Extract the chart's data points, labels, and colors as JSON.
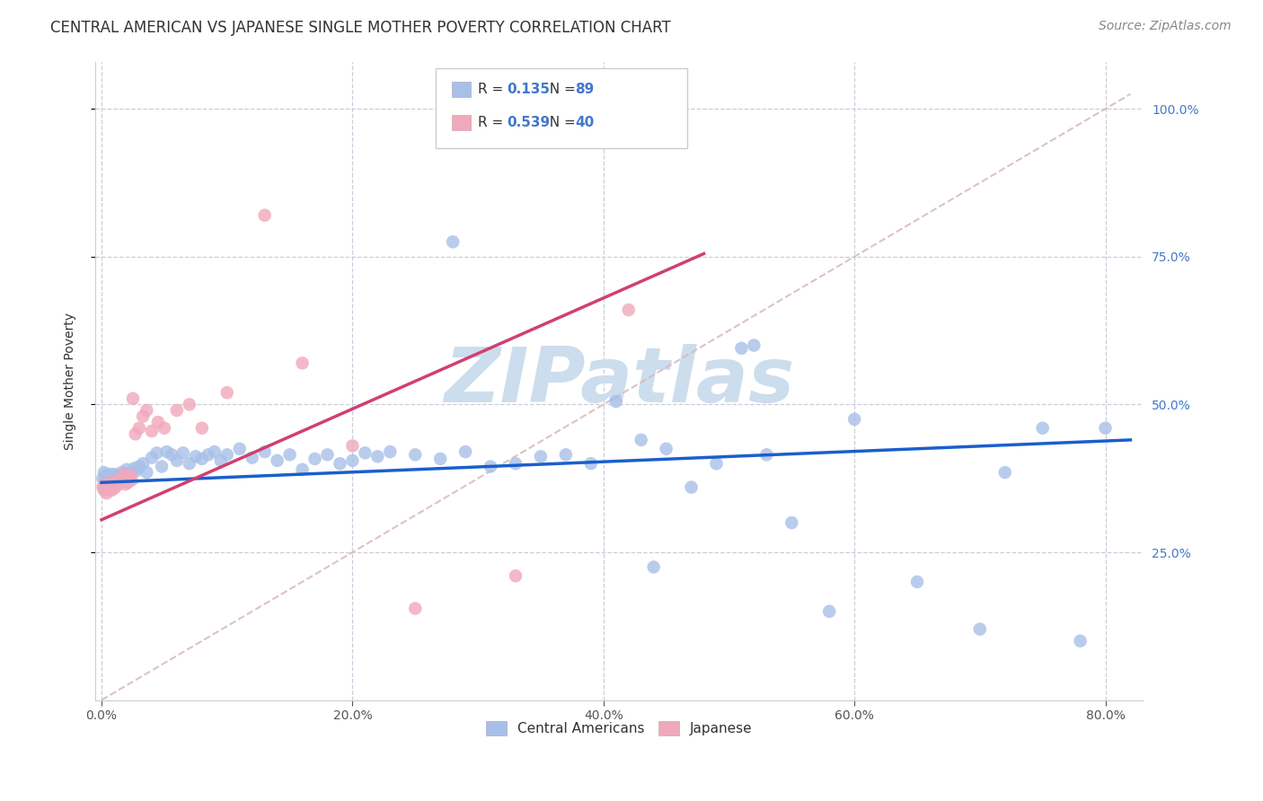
{
  "title": "CENTRAL AMERICAN VS JAPANESE SINGLE MOTHER POVERTY CORRELATION CHART",
  "source": "Source: ZipAtlas.com",
  "ylabel": "Single Mother Poverty",
  "xlabel_ticks": [
    "0.0%",
    "20.0%",
    "40.0%",
    "60.0%",
    "80.0%"
  ],
  "xlabel_vals": [
    0.0,
    0.2,
    0.4,
    0.6,
    0.8
  ],
  "ylabel_ticks": [
    "100.0%",
    "75.0%",
    "50.0%",
    "25.0%"
  ],
  "ylabel_vals": [
    1.0,
    0.75,
    0.5,
    0.25
  ],
  "xlim": [
    -0.005,
    0.83
  ],
  "ylim": [
    0.0,
    1.08
  ],
  "legend_labels": [
    "Central Americans",
    "Japanese"
  ],
  "R_blue": 0.135,
  "N_blue": 89,
  "R_pink": 0.539,
  "N_pink": 40,
  "dot_color_blue": "#a8c0e8",
  "dot_color_pink": "#f0a8bc",
  "trend_color_blue": "#1a5fcc",
  "trend_color_pink": "#d04070",
  "diagonal_color": "#d8b8b8",
  "background_color": "#ffffff",
  "grid_color": "#ccccdd",
  "watermark_color": "#ccdded",
  "title_color": "#333333",
  "source_color": "#888888",
  "tick_color_right": "#4477cc",
  "tick_color_x": "#555555",
  "title_fontsize": 12,
  "axis_label_fontsize": 10,
  "tick_fontsize": 10,
  "legend_fontsize": 11,
  "source_fontsize": 10,
  "blue_x": [
    0.001,
    0.002,
    0.002,
    0.003,
    0.003,
    0.004,
    0.004,
    0.005,
    0.005,
    0.006,
    0.006,
    0.007,
    0.007,
    0.008,
    0.008,
    0.009,
    0.009,
    0.01,
    0.01,
    0.011,
    0.012,
    0.013,
    0.014,
    0.015,
    0.016,
    0.017,
    0.018,
    0.02,
    0.022,
    0.024,
    0.026,
    0.028,
    0.03,
    0.033,
    0.036,
    0.04,
    0.044,
    0.048,
    0.052,
    0.056,
    0.06,
    0.065,
    0.07,
    0.075,
    0.08,
    0.085,
    0.09,
    0.095,
    0.1,
    0.11,
    0.12,
    0.13,
    0.14,
    0.15,
    0.16,
    0.17,
    0.18,
    0.19,
    0.2,
    0.21,
    0.22,
    0.23,
    0.25,
    0.27,
    0.29,
    0.31,
    0.33,
    0.35,
    0.37,
    0.39,
    0.41,
    0.43,
    0.45,
    0.47,
    0.49,
    0.51,
    0.53,
    0.55,
    0.6,
    0.65,
    0.7,
    0.72,
    0.75,
    0.78,
    0.8,
    0.52,
    0.28,
    0.44,
    0.58
  ],
  "blue_y": [
    0.375,
    0.365,
    0.385,
    0.37,
    0.38,
    0.375,
    0.365,
    0.37,
    0.38,
    0.375,
    0.368,
    0.372,
    0.382,
    0.37,
    0.375,
    0.368,
    0.378,
    0.372,
    0.382,
    0.375,
    0.37,
    0.368,
    0.375,
    0.38,
    0.385,
    0.378,
    0.382,
    0.39,
    0.378,
    0.385,
    0.392,
    0.388,
    0.395,
    0.4,
    0.385,
    0.41,
    0.418,
    0.395,
    0.42,
    0.415,
    0.405,
    0.418,
    0.4,
    0.412,
    0.408,
    0.415,
    0.42,
    0.405,
    0.415,
    0.425,
    0.41,
    0.42,
    0.405,
    0.415,
    0.39,
    0.408,
    0.415,
    0.4,
    0.405,
    0.418,
    0.412,
    0.42,
    0.415,
    0.408,
    0.42,
    0.395,
    0.4,
    0.412,
    0.415,
    0.4,
    0.505,
    0.44,
    0.425,
    0.36,
    0.4,
    0.595,
    0.415,
    0.3,
    0.475,
    0.2,
    0.12,
    0.385,
    0.46,
    0.1,
    0.46,
    0.6,
    0.775,
    0.225,
    0.15
  ],
  "pink_x": [
    0.001,
    0.002,
    0.003,
    0.004,
    0.005,
    0.006,
    0.007,
    0.008,
    0.009,
    0.01,
    0.011,
    0.012,
    0.013,
    0.015,
    0.017,
    0.018,
    0.019,
    0.02,
    0.021,
    0.022,
    0.023,
    0.024,
    0.025,
    0.027,
    0.03,
    0.033,
    0.036,
    0.04,
    0.045,
    0.05,
    0.06,
    0.07,
    0.08,
    0.1,
    0.13,
    0.16,
    0.2,
    0.25,
    0.33,
    0.42
  ],
  "pink_y": [
    0.36,
    0.355,
    0.365,
    0.35,
    0.358,
    0.362,
    0.368,
    0.355,
    0.365,
    0.358,
    0.37,
    0.362,
    0.368,
    0.375,
    0.37,
    0.382,
    0.365,
    0.372,
    0.368,
    0.375,
    0.38,
    0.372,
    0.51,
    0.45,
    0.46,
    0.48,
    0.49,
    0.455,
    0.47,
    0.46,
    0.49,
    0.5,
    0.46,
    0.52,
    0.82,
    0.57,
    0.43,
    0.155,
    0.21,
    0.66
  ]
}
